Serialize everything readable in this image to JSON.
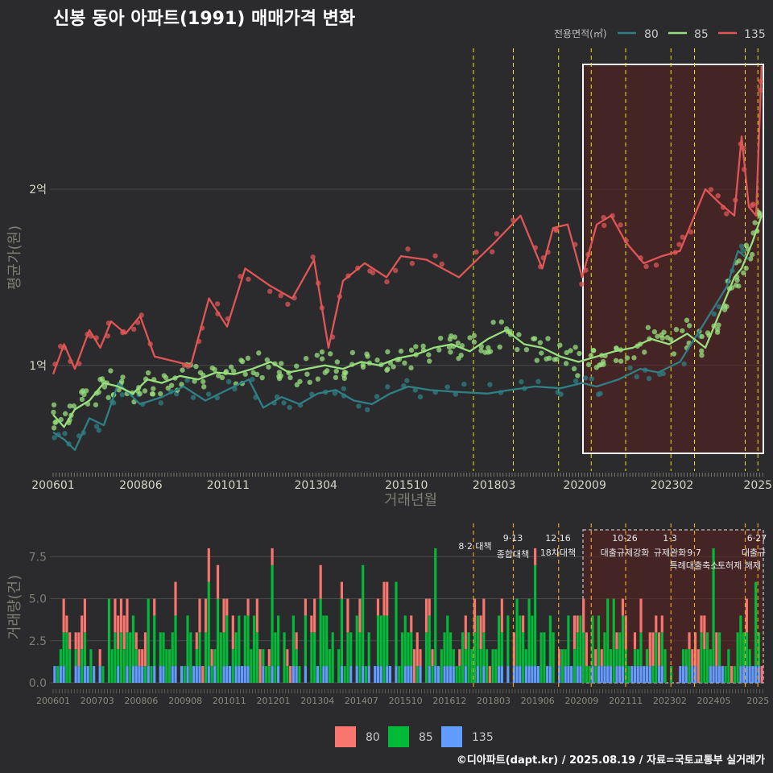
{
  "title": "신봉 동아 아파트(1991) 매매가격 변화",
  "footer": "©디아파트(dapt.kr) / 2025.08.19 / 자료=국토교통부 실거래가",
  "colors": {
    "s80": "#2f7f86",
    "s85": "#98e07e",
    "s135": "#e05555",
    "v80": "#f8766d",
    "v85": "#00ba38",
    "v135": "#619cff",
    "policy": "#e8e800",
    "policyVol": "#f0a020",
    "highlight": "#ffffff"
  },
  "chart_data": [
    {
      "type": "line",
      "name": "price",
      "xlabel": "거래년월",
      "ylabel": "평균가(원)",
      "x_ticks": [
        "200601",
        "200806",
        "201011",
        "201304",
        "201510",
        "201803",
        "202009",
        "202302",
        "2025"
      ],
      "y_ticks": [
        "1억",
        "2억"
      ],
      "ylim_억": [
        0.4,
        2.8
      ],
      "legend_title": "전용면적(㎡)",
      "series": [
        {
          "name": "80",
          "points": [
            [
              2006.0,
              0.62
            ],
            [
              2006.3,
              0.58
            ],
            [
              2006.6,
              0.52
            ],
            [
              2007.0,
              0.7
            ],
            [
              2007.4,
              0.66
            ],
            [
              2007.8,
              0.9
            ],
            [
              2008.4,
              0.78
            ],
            [
              2009.0,
              0.82
            ],
            [
              2009.6,
              0.88
            ],
            [
              2010.2,
              0.8
            ],
            [
              2010.8,
              0.86
            ],
            [
              2011.4,
              0.92
            ],
            [
              2011.8,
              0.76
            ],
            [
              2012.3,
              0.82
            ],
            [
              2012.8,
              0.78
            ],
            [
              2013.3,
              0.84
            ],
            [
              2013.8,
              0.86
            ],
            [
              2014.3,
              0.8
            ],
            [
              2014.8,
              0.78
            ],
            [
              2015.3,
              0.84
            ],
            [
              2015.8,
              0.88
            ],
            [
              2016.4,
              0.86
            ],
            [
              2017.1,
              0.85
            ],
            [
              2018.0,
              0.84
            ],
            [
              2018.6,
              0.86
            ],
            [
              2019.3,
              0.88
            ],
            [
              2020.0,
              0.87
            ],
            [
              2020.6,
              0.9
            ],
            [
              2021.0,
              0.88
            ],
            [
              2021.6,
              0.92
            ],
            [
              2022.2,
              0.98
            ],
            [
              2022.7,
              0.96
            ],
            [
              2023.3,
              1.02
            ],
            [
              2024.0,
              1.25
            ],
            [
              2024.6,
              1.45
            ],
            [
              2024.9,
              1.65
            ],
            [
              2025.2,
              1.6
            ]
          ]
        },
        {
          "name": "85",
          "points": [
            [
              2006.0,
              0.72
            ],
            [
              2006.3,
              0.65
            ],
            [
              2006.6,
              0.75
            ],
            [
              2007.0,
              0.8
            ],
            [
              2007.4,
              0.9
            ],
            [
              2007.8,
              0.88
            ],
            [
              2008.2,
              0.84
            ],
            [
              2008.6,
              0.92
            ],
            [
              2009.0,
              0.9
            ],
            [
              2009.5,
              0.94
            ],
            [
              2010.0,
              0.92
            ],
            [
              2010.5,
              0.96
            ],
            [
              2011.0,
              0.95
            ],
            [
              2011.5,
              0.98
            ],
            [
              2012.0,
              1.02
            ],
            [
              2012.5,
              0.96
            ],
            [
              2013.0,
              0.98
            ],
            [
              2013.5,
              1.0
            ],
            [
              2014.0,
              0.98
            ],
            [
              2014.5,
              1.02
            ],
            [
              2015.0,
              1.0
            ],
            [
              2015.5,
              1.04
            ],
            [
              2016.0,
              1.06
            ],
            [
              2016.5,
              1.1
            ],
            [
              2017.0,
              1.12
            ],
            [
              2017.5,
              1.08
            ],
            [
              2018.0,
              1.15
            ],
            [
              2018.5,
              1.2
            ],
            [
              2019.0,
              1.12
            ],
            [
              2019.5,
              1.1
            ],
            [
              2020.0,
              1.05
            ],
            [
              2020.5,
              1.02
            ],
            [
              2021.0,
              1.05
            ],
            [
              2021.5,
              1.08
            ],
            [
              2022.0,
              1.1
            ],
            [
              2022.5,
              1.15
            ],
            [
              2023.0,
              1.12
            ],
            [
              2023.5,
              1.18
            ],
            [
              2024.0,
              1.1
            ],
            [
              2024.5,
              1.35
            ],
            [
              2024.8,
              1.5
            ],
            [
              2025.0,
              1.55
            ],
            [
              2025.3,
              1.7
            ],
            [
              2025.55,
              1.85
            ]
          ]
        },
        {
          "name": "135",
          "points": [
            [
              2006.0,
              0.95
            ],
            [
              2006.3,
              1.12
            ],
            [
              2006.6,
              0.98
            ],
            [
              2007.0,
              1.2
            ],
            [
              2007.3,
              1.1
            ],
            [
              2007.6,
              1.25
            ],
            [
              2008.0,
              1.18
            ],
            [
              2008.4,
              1.28
            ],
            [
              2008.8,
              1.05
            ],
            [
              2009.8,
              1.0
            ],
            [
              2010.3,
              1.38
            ],
            [
              2010.8,
              1.22
            ],
            [
              2011.3,
              1.55
            ],
            [
              2012.0,
              1.45
            ],
            [
              2012.6,
              1.38
            ],
            [
              2013.2,
              1.6
            ],
            [
              2013.6,
              1.1
            ],
            [
              2014.0,
              1.48
            ],
            [
              2014.6,
              1.58
            ],
            [
              2015.2,
              1.5
            ],
            [
              2015.6,
              1.62
            ],
            [
              2016.3,
              1.6
            ],
            [
              2017.2,
              1.5
            ],
            [
              2018.2,
              1.7
            ],
            [
              2018.9,
              1.85
            ],
            [
              2019.5,
              1.55
            ],
            [
              2019.8,
              1.78
            ],
            [
              2020.2,
              1.8
            ],
            [
              2020.6,
              1.5
            ],
            [
              2021.0,
              1.8
            ],
            [
              2021.4,
              1.85
            ],
            [
              2021.8,
              1.7
            ],
            [
              2022.3,
              1.58
            ],
            [
              2022.8,
              1.62
            ],
            [
              2023.3,
              1.65
            ],
            [
              2024.0,
              2.0
            ],
            [
              2024.4,
              1.92
            ],
            [
              2024.8,
              1.85
            ],
            [
              2025.0,
              2.3
            ],
            [
              2025.2,
              1.9
            ],
            [
              2025.4,
              1.85
            ],
            [
              2025.55,
              2.7
            ]
          ]
        }
      ]
    },
    {
      "type": "bar",
      "name": "volume",
      "ylabel": "거래량(건)",
      "y_ticks": [
        "0.0",
        "2.5",
        "5.0",
        "7.5"
      ],
      "ylim": [
        0,
        9
      ],
      "x_ticks": [
        "200601",
        "200703",
        "200806",
        "200908",
        "201011",
        "201201",
        "201304",
        "201407",
        "201510",
        "201612",
        "201803",
        "201906",
        "202009",
        "202111",
        "202302",
        "202405",
        "2025"
      ],
      "legend": [
        "80",
        "85",
        "135"
      ],
      "annotations": [
        "8·2 대책",
        "9·13",
        "종합대책",
        "12·16",
        "18차대책",
        "10·26",
        "대출규제강화",
        "1·3",
        "규제완화",
        "9·7",
        "특례대출축소",
        "토허제 해제",
        "6·27",
        "대출규"
      ]
    }
  ]
}
